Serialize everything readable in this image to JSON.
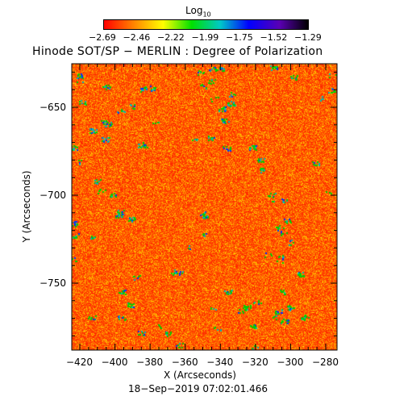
{
  "colorbar": {
    "label_main": "Log",
    "label_sub": "10",
    "ticks": [
      "−2.69",
      "−2.46",
      "−2.22",
      "−1.99",
      "−1.75",
      "−1.52",
      "−1.29"
    ],
    "colors": [
      "#ff0000",
      "#ff7f00",
      "#ffff00",
      "#00e000",
      "#00c8c8",
      "#0000ff",
      "#5a00b4",
      "#000000"
    ]
  },
  "title": "Hinode SOT/SP − MERLIN : Degree of Polarization",
  "axes": {
    "x_label": "X (Arcseconds)",
    "y_label": "Y (Arcseconds)",
    "x_ticks": [
      "−420",
      "−400",
      "−380",
      "−360",
      "−340",
      "−320",
      "−300",
      "−280"
    ],
    "y_ticks": [
      "−650",
      "−700",
      "−750"
    ]
  },
  "timestamp": "18−Sep−2019 07:02:01.466",
  "map": {
    "dominant_colors": [
      "#ff6a00",
      "#ff3c00",
      "#ff9a00",
      "#ffd000"
    ],
    "feature_colors": [
      "#00d000",
      "#00b8b8",
      "#0040ff"
    ]
  }
}
